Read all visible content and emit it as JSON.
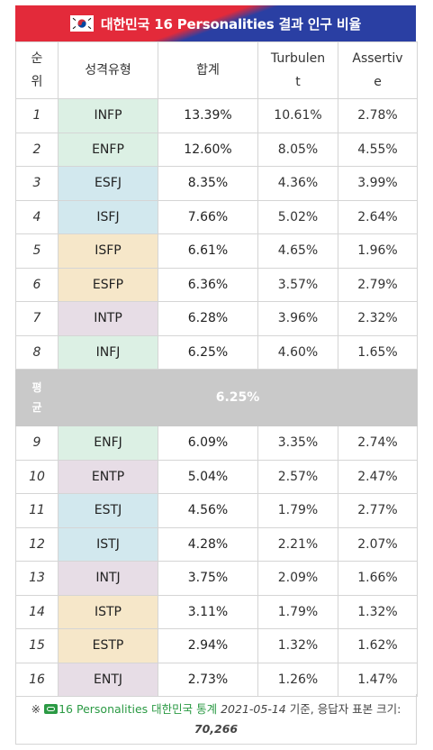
{
  "title": "대한민국 16 Personalities 결과 인구 비율",
  "headers": {
    "rank_line1": "순",
    "rank_line2": "위",
    "type": "성격유형",
    "total": "합계",
    "turbulent_line1": "Turbulen",
    "turbulent_line2": "t",
    "assertive_line1": "Assertiv",
    "assertive_line2": "e"
  },
  "rows_top": [
    {
      "rank": "1",
      "type": "INFP",
      "total_num": "13.39",
      "total_pct": "%",
      "turbulent": "10.61%",
      "assertive": "2.78%",
      "color": "green"
    },
    {
      "rank": "2",
      "type": "ENFP",
      "total_num": "12.60",
      "total_pct": "%",
      "turbulent": "8.05%",
      "assertive": "4.55%",
      "color": "green"
    },
    {
      "rank": "3",
      "type": "ESFJ",
      "total_num": "8.35",
      "total_pct": "%",
      "turbulent": "4.36%",
      "assertive": "3.99%",
      "color": "blue"
    },
    {
      "rank": "4",
      "type": "ISFJ",
      "total_num": "7.66",
      "total_pct": "%",
      "turbulent": "5.02%",
      "assertive": "2.64%",
      "color": "blue"
    },
    {
      "rank": "5",
      "type": "ISFP",
      "total_num": "6.61",
      "total_pct": "%",
      "turbulent": "4.65%",
      "assertive": "1.96%",
      "color": "yellow"
    },
    {
      "rank": "6",
      "type": "ESFP",
      "total_num": "6.36",
      "total_pct": "%",
      "turbulent": "3.57%",
      "assertive": "2.79%",
      "color": "yellow"
    },
    {
      "rank": "7",
      "type": "INTP",
      "total_num": "6.28",
      "total_pct": "%",
      "turbulent": "3.96%",
      "assertive": "2.32%",
      "color": "purple"
    },
    {
      "rank": "8",
      "type": "INFJ",
      "total_num": "6.25",
      "total_pct": "%",
      "turbulent": "4.60%",
      "assertive": "1.65%",
      "color": "green"
    }
  ],
  "average": {
    "label_line1": "평",
    "label_line2": "균",
    "value": "6.25%"
  },
  "rows_bottom": [
    {
      "rank": "9",
      "type": "ENFJ",
      "total_num": "6.09",
      "total_pct": "%",
      "turbulent": "3.35%",
      "assertive": "2.74%",
      "color": "green"
    },
    {
      "rank": "10",
      "type": "ENTP",
      "total_num": "5.04",
      "total_pct": "%",
      "turbulent": "2.57%",
      "assertive": "2.47%",
      "color": "purple"
    },
    {
      "rank": "11",
      "type": "ESTJ",
      "total_num": "4.56",
      "total_pct": "%",
      "turbulent": "1.79%",
      "assertive": "2.77%",
      "color": "blue"
    },
    {
      "rank": "12",
      "type": "ISTJ",
      "total_num": "4.28",
      "total_pct": "%",
      "turbulent": "2.21%",
      "assertive": "2.07%",
      "color": "blue"
    },
    {
      "rank": "13",
      "type": "INTJ",
      "total_num": "3.75",
      "total_pct": "%",
      "turbulent": "2.09%",
      "assertive": "1.66%",
      "color": "purple",
      "bold": true
    },
    {
      "rank": "14",
      "type": "ISTP",
      "total_num": "3.11",
      "total_pct": "%",
      "turbulent": "1.79%",
      "assertive": "1.32%",
      "color": "yellow"
    },
    {
      "rank": "15",
      "type": "ESTP",
      "total_num": "2.94",
      "total_pct": "%",
      "turbulent": "1.32%",
      "assertive": "1.62%",
      "color": "yellow"
    },
    {
      "rank": "16",
      "type": "ENTJ",
      "total_num": "2.73",
      "total_pct": "%",
      "turbulent": "1.26%",
      "assertive": "1.47%",
      "color": "purple"
    }
  ],
  "footer": {
    "mark": "※",
    "link_icon": "link-icon",
    "source": "16 Personalities 대한민국 통계",
    "date": "2021-05-14",
    "suffix": "기준, 응답자 표본 크기:",
    "count": "70,266"
  },
  "colors": {
    "banner_red": "#e32a3a",
    "banner_blue": "#2a3fa3",
    "green": "#dcf0e4",
    "blue": "#d2e8ee",
    "yellow": "#f6e7c9",
    "purple": "#e7dde6",
    "average_bg": "#c9c9c9",
    "link_green": "#2b9a44"
  }
}
